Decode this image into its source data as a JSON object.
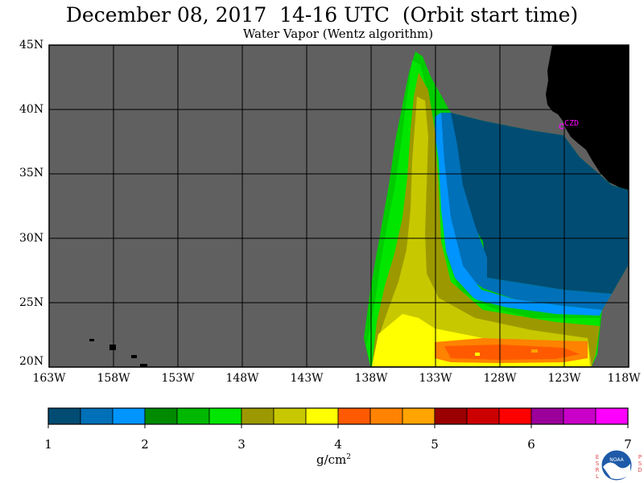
{
  "title": "December 08, 2017  14-16 UTC  (Orbit start time)",
  "subtitle": "Water Vapor (Wentz algorithm)",
  "map": {
    "lat_labels": [
      "45N",
      "40N",
      "35N",
      "30N",
      "25N",
      "20N"
    ],
    "lon_labels": [
      "163W",
      "158W",
      "153W",
      "148W",
      "143W",
      "138W",
      "133W",
      "128W",
      "123W",
      "118W"
    ],
    "station_label": "CZD",
    "colors": {
      "no_data": "#606060",
      "land": "#000000",
      "station": "#ff00ff",
      "grid": "#000000"
    }
  },
  "colorbar": {
    "tick_labels": [
      "1",
      "2",
      "3",
      "4",
      "5",
      "6",
      "7"
    ],
    "unit": "g/cm",
    "unit_superscript": "2",
    "colors": [
      "#004c73",
      "#0070b8",
      "#0094ff",
      "#008a00",
      "#00b800",
      "#00e600",
      "#9c9900",
      "#c8c800",
      "#ffff00",
      "#ff5a00",
      "#ff8200",
      "#ffa400",
      "#9b0000",
      "#cd0000",
      "#ff0000",
      "#9b009b",
      "#c800c8",
      "#ff00ff"
    ]
  },
  "logo": {
    "left_letters": [
      "E",
      "S",
      "R",
      "L"
    ],
    "right_letters": [
      "P",
      "S",
      "D"
    ],
    "text": "NOAA"
  }
}
